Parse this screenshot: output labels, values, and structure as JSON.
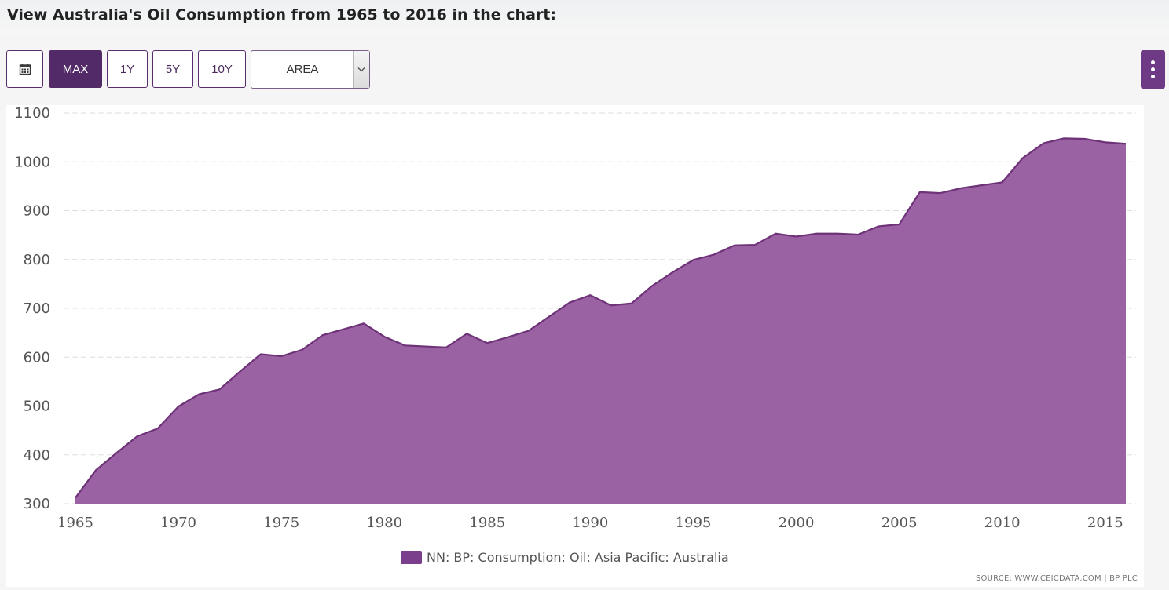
{
  "page": {
    "title": "View Australia's Oil Consumption from 1965 to 2016 in the chart:"
  },
  "toolbar": {
    "calendar_icon": "calendar-icon",
    "ranges": [
      "MAX",
      "1Y",
      "5Y",
      "10Y"
    ],
    "active_range": "MAX",
    "chart_type_select": {
      "value": "AREA",
      "icon": "chevron-down-icon"
    },
    "more_menu_icon": "vertical-ellipsis-icon"
  },
  "colors": {
    "accent": "#522a68",
    "area_fill": "#9a62a2",
    "area_line": "#6e3278",
    "legend_swatch": "#7b3e8c"
  },
  "chart_data": {
    "type": "area",
    "title": "",
    "xlabel": "",
    "ylabel": "",
    "x": [
      1965,
      1966,
      1967,
      1968,
      1969,
      1970,
      1971,
      1972,
      1973,
      1974,
      1975,
      1976,
      1977,
      1978,
      1979,
      1980,
      1981,
      1982,
      1983,
      1984,
      1985,
      1986,
      1987,
      1988,
      1989,
      1990,
      1991,
      1992,
      1993,
      1994,
      1995,
      1996,
      1997,
      1998,
      1999,
      2000,
      2001,
      2002,
      2003,
      2004,
      2005,
      2006,
      2007,
      2008,
      2009,
      2010,
      2011,
      2012,
      2013,
      2014,
      2015,
      2016
    ],
    "series": [
      {
        "name": "NN: BP: Consumption: Oil: Asia Pacific: Australia",
        "values": [
          312,
          369,
          404,
          438,
          454,
          499,
          524,
          534,
          571,
          606,
          602,
          615,
          645,
          657,
          669,
          642,
          624,
          622,
          620,
          648,
          629,
          641,
          654,
          683,
          712,
          727,
          706,
          710,
          746,
          774,
          799,
          810,
          829,
          830,
          853,
          847,
          853,
          853,
          851,
          868,
          872,
          938,
          936,
          946,
          952,
          958,
          1008,
          1038,
          1048,
          1047,
          1040,
          1037
        ]
      }
    ],
    "xlim": [
      1965,
      2016
    ],
    "ylim": [
      300,
      1100
    ],
    "x_ticks": [
      "1965",
      "1970",
      "1975",
      "1980",
      "1985",
      "1990",
      "1995",
      "2000",
      "2005",
      "2010",
      "2015"
    ],
    "y_ticks": [
      "300",
      "400",
      "500",
      "600",
      "700",
      "800",
      "900",
      "1000",
      "1100"
    ],
    "grid": true,
    "legend_position": "bottom"
  },
  "legend": {
    "label": "NN: BP: Consumption: Oil: Asia Pacific: Australia"
  },
  "footer": {
    "source": "SOURCE: WWW.CEICDATA.COM | BP PLC"
  }
}
